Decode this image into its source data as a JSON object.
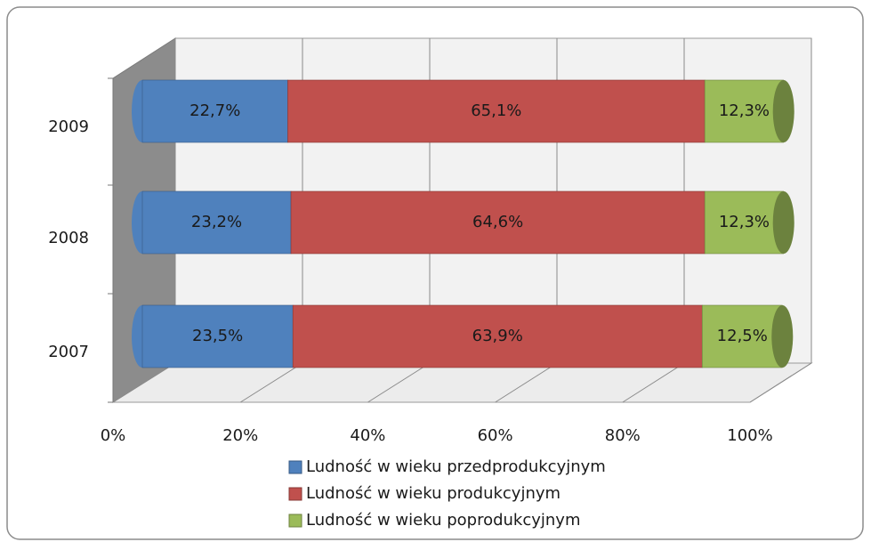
{
  "chart_data": {
    "type": "bar",
    "orientation": "horizontal",
    "stacked": true,
    "categories": [
      "2007",
      "2008",
      "2009"
    ],
    "series": [
      {
        "name": "Ludność w wieku przedprodukcyjnym",
        "color": "#4f81bd",
        "values": [
          23.5,
          23.2,
          22.7
        ],
        "value_labels": [
          "23,5%",
          "23,2%",
          "22,7%"
        ]
      },
      {
        "name": "Ludność w wieku produkcyjnym",
        "color": "#c0504d",
        "values": [
          63.9,
          64.6,
          65.1
        ],
        "value_labels": [
          "63,9%",
          "64,6%",
          "65,1%"
        ]
      },
      {
        "name": "Ludność w wieku poprodukcyjnym",
        "color": "#9bbb59",
        "values": [
          12.5,
          12.3,
          12.3
        ],
        "value_labels": [
          "12,5%",
          "12,3%",
          "12,3%"
        ]
      }
    ],
    "xlim": [
      0,
      100
    ],
    "xticks": [
      {
        "value": 0,
        "label": "0%"
      },
      {
        "value": 20,
        "label": "20%"
      },
      {
        "value": 40,
        "label": "40%"
      },
      {
        "value": 60,
        "label": "60%"
      },
      {
        "value": 80,
        "label": "80%"
      },
      {
        "value": 100,
        "label": "100%"
      }
    ],
    "grid": true,
    "legend": "bottom"
  }
}
